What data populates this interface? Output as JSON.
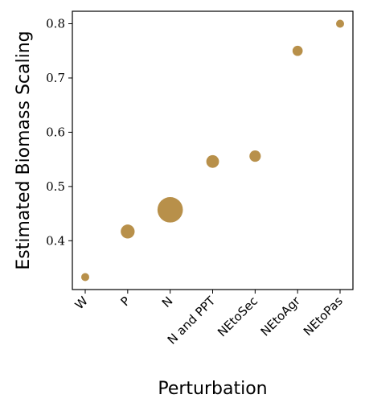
{
  "chart_data": {
    "type": "scatter",
    "xlabel": "Perturbation",
    "ylabel": "Estimated Biomass Scaling",
    "categories": [
      "W",
      "P",
      "N",
      "N and PPT",
      "NEtoSec",
      "NEtoAgr",
      "NEtoPas"
    ],
    "values": [
      0.333,
      0.417,
      0.457,
      0.546,
      0.556,
      0.75,
      0.8
    ],
    "marker_sizes": [
      1,
      3,
      10,
      2.5,
      2,
      1.6,
      1
    ],
    "yticks": [
      0.4,
      0.5,
      0.6,
      0.7,
      0.8
    ],
    "ylim": [
      0.31,
      0.823
    ],
    "grid": false,
    "color": "#b8904a"
  }
}
